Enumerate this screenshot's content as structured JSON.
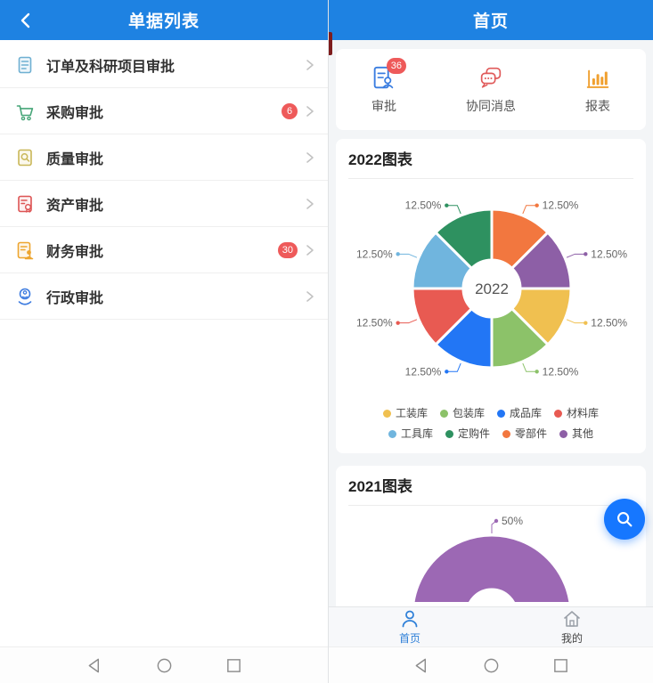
{
  "left_screen": {
    "header": {
      "title": "单据列表",
      "back_icon": "chevron-left-icon"
    },
    "list": [
      {
        "label": "订单及科研项目审批",
        "icon": "document-lines-icon",
        "icon_color": "#6fb0d2",
        "badge": null
      },
      {
        "label": "采购审批",
        "icon": "shopping-cart-icon",
        "icon_color": "#46a578",
        "badge": "6"
      },
      {
        "label": "质量审批",
        "icon": "document-search-icon",
        "icon_color": "#c9b758",
        "badge": null
      },
      {
        "label": "资产审批",
        "icon": "document-seal-icon",
        "icon_color": "#dd5454",
        "badge": null
      },
      {
        "label": "财务审批",
        "icon": "document-stamp-icon",
        "icon_color": "#eda52f",
        "badge": "30"
      },
      {
        "label": "行政审批",
        "icon": "service-hand-icon",
        "icon_color": "#3f7de0",
        "badge": null
      }
    ]
  },
  "right_screen": {
    "header": {
      "title": "首页"
    },
    "shortcuts": [
      {
        "label": "审批",
        "icon": "approval-document-icon",
        "color": "#3a7de0",
        "badge": "36"
      },
      {
        "label": "协同消息",
        "icon": "chat-bubbles-icon",
        "color": "#e05a5a",
        "badge": null
      },
      {
        "label": "报表",
        "icon": "bar-chart-icon",
        "color": "#f0a030",
        "badge": null
      }
    ],
    "fab": {
      "icon": "search-icon",
      "color": "#1677ff"
    },
    "tabbar": [
      {
        "label": "首页",
        "icon": "person-icon",
        "active": true
      },
      {
        "label": "我的",
        "icon": "home-icon",
        "active": false
      }
    ]
  },
  "chart_data": [
    {
      "type": "pie",
      "title": "2022图表",
      "center_label": "2022",
      "donut": true,
      "total": 100,
      "start_angle_clock_deg": 0,
      "slices": [
        {
          "name": "零部件",
          "value": 12.5,
          "label": "12.50%",
          "color": "#f2773f"
        },
        {
          "name": "其他",
          "value": 12.5,
          "label": "12.50%",
          "color": "#8d5fa6"
        },
        {
          "name": "工装库",
          "value": 12.5,
          "label": "12.50%",
          "color": "#f0c050"
        },
        {
          "name": "包装库",
          "value": 12.5,
          "label": "12.50%",
          "color": "#8cc269"
        },
        {
          "name": "成品库",
          "value": 12.5,
          "label": "12.50%",
          "color": "#2276f5"
        },
        {
          "name": "材料库",
          "value": 12.5,
          "label": "12.50%",
          "color": "#e85a52"
        },
        {
          "name": "工具库",
          "value": 12.5,
          "label": "12.50%",
          "color": "#70b5de"
        },
        {
          "name": "定购件",
          "value": 12.5,
          "label": "12.50%",
          "color": "#2e9160"
        }
      ],
      "legend_order": [
        "工装库",
        "包装库",
        "成品库",
        "材料库",
        "工具库",
        "定购件",
        "零部件",
        "其他"
      ],
      "legend_position": "bottom"
    },
    {
      "type": "pie",
      "title": "2021图表",
      "donut": true,
      "partial_visible": true,
      "total": 100,
      "start_angle_clock_deg": -90,
      "slices": [
        {
          "name": "",
          "value": 50,
          "label": "50%",
          "color": "#9c68b4"
        }
      ]
    }
  ],
  "colors": {
    "header_blue": "#1e82e2",
    "badge_red": "#ee5a5a",
    "fab_blue": "#1677ff",
    "tab_active_blue": "#2f80d8",
    "panel_bg": "#f3f5f7"
  },
  "android_nav": {
    "buttons": [
      "back-triangle",
      "home-circle",
      "recents-square"
    ]
  }
}
